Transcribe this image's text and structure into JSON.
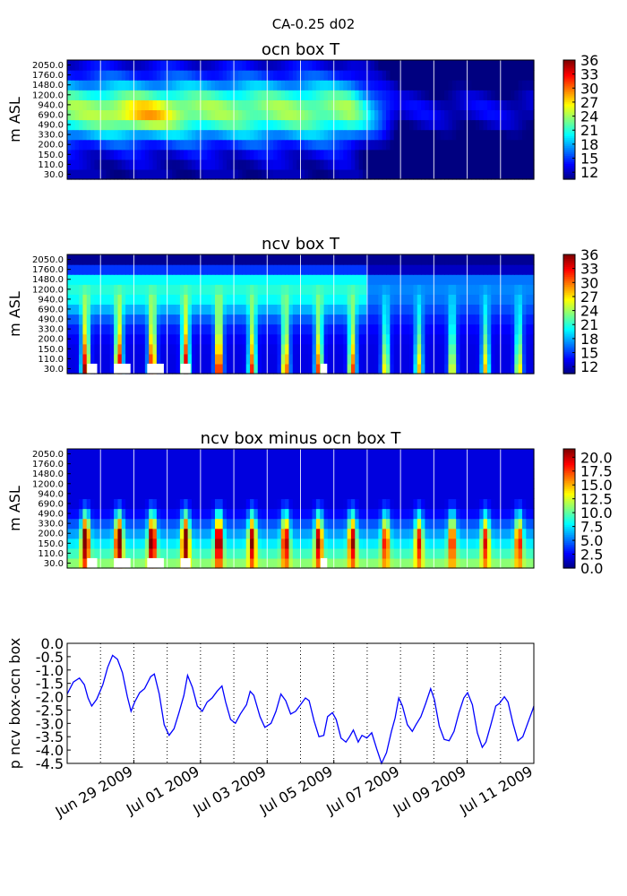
{
  "figure_title": "CA-0.25 d02",
  "chart_data": [
    {
      "type": "heatmap",
      "title": "ocn box T",
      "ylabel": "m ASL",
      "y_levels": [
        "30.0",
        "110.0",
        "150.0",
        "200.0",
        "330.0",
        "490.0",
        "690.0",
        "940.0",
        "1200.0",
        "1480.0",
        "1760.0",
        "2050.0"
      ],
      "colorbar_ticks": [
        "12",
        "15",
        "18",
        "21",
        "24",
        "27",
        "30",
        "33",
        "36"
      ],
      "colorbar_range": [
        10.5,
        36
      ],
      "colormap": "jet"
    },
    {
      "type": "heatmap",
      "title": "ncv box T",
      "ylabel": "m ASL",
      "y_levels": [
        "30.0",
        "110.0",
        "150.0",
        "200.0",
        "330.0",
        "490.0",
        "690.0",
        "940.0",
        "1200.0",
        "1480.0",
        "1760.0",
        "2050.0"
      ],
      "colorbar_ticks": [
        "12",
        "15",
        "18",
        "21",
        "24",
        "27",
        "30",
        "33",
        "36"
      ],
      "colorbar_range": [
        10.5,
        36
      ],
      "colormap": "jet"
    },
    {
      "type": "heatmap",
      "title": "ncv box minus ocn box T",
      "ylabel": "m ASL",
      "y_levels": [
        "30.0",
        "110.0",
        "150.0",
        "200.0",
        "330.0",
        "490.0",
        "690.0",
        "940.0",
        "1200.0",
        "1480.0",
        "1760.0",
        "2050.0"
      ],
      "colorbar_ticks": [
        "0.0",
        "2.5",
        "5.0",
        "7.5",
        "10.0",
        "12.5",
        "15.0",
        "17.5",
        "20.0"
      ],
      "colorbar_range": [
        0,
        21.5
      ],
      "colormap": "jet"
    },
    {
      "type": "line",
      "title": "",
      "ylabel": "p ncv box-ocn box",
      "ylim": [
        -4.5,
        0.0
      ],
      "yticks": [
        "0.0",
        "-0.5",
        "-1.0",
        "-1.5",
        "-2.0",
        "-2.5",
        "-3.0",
        "-3.5",
        "-4.0",
        "-4.5"
      ],
      "xlim_days": [
        "2009-06-27 23:00",
        "2009-07-11 23:00"
      ],
      "xtick_labels": [
        "Jun 29 2009",
        "Jul 01 2009",
        "Jul 03 2009",
        "Jul 05 2009",
        "Jul 07 2009",
        "Jul 09 2009",
        "Jul 11 2009"
      ],
      "grid": "vertical dotted daily",
      "series": [
        {
          "color": "#0000ff",
          "points": [
            [
              0.0,
              -1.9
            ],
            [
              0.25,
              -1.45
            ],
            [
              0.5,
              -1.3
            ],
            [
              0.7,
              -1.55
            ],
            [
              0.85,
              -2.05
            ],
            [
              1.0,
              -2.35
            ],
            [
              1.2,
              -2.1
            ],
            [
              1.45,
              -1.55
            ],
            [
              1.65,
              -0.9
            ],
            [
              1.85,
              -0.45
            ],
            [
              2.05,
              -0.6
            ],
            [
              2.25,
              -1.1
            ],
            [
              2.45,
              -2.0
            ],
            [
              2.6,
              -2.55
            ],
            [
              2.75,
              -2.2
            ],
            [
              2.95,
              -1.85
            ],
            [
              3.15,
              -1.7
            ],
            [
              3.4,
              -1.25
            ],
            [
              3.55,
              -1.15
            ],
            [
              3.75,
              -1.9
            ],
            [
              3.95,
              -3.05
            ],
            [
              4.15,
              -3.45
            ],
            [
              4.35,
              -3.2
            ],
            [
              4.55,
              -2.6
            ],
            [
              4.75,
              -1.95
            ],
            [
              4.9,
              -1.2
            ],
            [
              5.1,
              -1.65
            ],
            [
              5.3,
              -2.35
            ],
            [
              5.5,
              -2.55
            ],
            [
              5.7,
              -2.2
            ],
            [
              5.9,
              -2.05
            ],
            [
              6.1,
              -1.8
            ],
            [
              6.3,
              -1.6
            ],
            [
              6.45,
              -2.2
            ],
            [
              6.65,
              -2.85
            ],
            [
              6.85,
              -3.0
            ],
            [
              7.05,
              -2.65
            ],
            [
              7.3,
              -2.3
            ],
            [
              7.45,
              -1.8
            ],
            [
              7.6,
              -1.95
            ],
            [
              7.85,
              -2.75
            ],
            [
              8.05,
              -3.15
            ],
            [
              8.3,
              -3.0
            ],
            [
              8.5,
              -2.55
            ],
            [
              8.7,
              -1.9
            ],
            [
              8.9,
              -2.15
            ],
            [
              9.1,
              -2.65
            ],
            [
              9.3,
              -2.55
            ],
            [
              9.5,
              -2.3
            ],
            [
              9.7,
              -2.05
            ],
            [
              9.85,
              -2.15
            ],
            [
              10.05,
              -2.9
            ],
            [
              10.25,
              -3.5
            ],
            [
              10.45,
              -3.45
            ],
            [
              10.6,
              -2.75
            ],
            [
              10.8,
              -2.6
            ],
            [
              10.95,
              -2.85
            ],
            [
              11.15,
              -3.55
            ],
            [
              11.35,
              -3.7
            ],
            [
              11.5,
              -3.5
            ],
            [
              11.65,
              -3.25
            ],
            [
              11.85,
              -3.7
            ],
            [
              12.0,
              -3.45
            ],
            [
              12.2,
              -3.55
            ],
            [
              12.4,
              -3.35
            ],
            [
              12.6,
              -3.95
            ],
            [
              12.8,
              -4.5
            ],
            [
              13.0,
              -4.1
            ],
            [
              13.2,
              -3.3
            ],
            [
              13.35,
              -2.8
            ],
            [
              13.5,
              -2.05
            ],
            [
              13.65,
              -2.35
            ],
            [
              13.85,
              -3.05
            ],
            [
              14.05,
              -3.3
            ],
            [
              14.2,
              -3.05
            ],
            [
              14.4,
              -2.75
            ],
            [
              14.6,
              -2.25
            ],
            [
              14.8,
              -1.7
            ],
            [
              14.95,
              -2.1
            ],
            [
              15.15,
              -3.1
            ],
            [
              15.35,
              -3.6
            ],
            [
              15.55,
              -3.65
            ],
            [
              15.75,
              -3.3
            ],
            [
              15.95,
              -2.6
            ],
            [
              16.15,
              -2.05
            ],
            [
              16.3,
              -1.85
            ],
            [
              16.5,
              -2.3
            ],
            [
              16.7,
              -3.35
            ],
            [
              16.9,
              -3.9
            ],
            [
              17.05,
              -3.7
            ],
            [
              17.25,
              -3.05
            ],
            [
              17.45,
              -2.35
            ],
            [
              17.6,
              -2.25
            ],
            [
              17.8,
              -2.0
            ],
            [
              17.95,
              -2.2
            ],
            [
              18.15,
              -3.0
            ],
            [
              18.35,
              -3.65
            ],
            [
              18.55,
              -3.5
            ],
            [
              18.75,
              -3.0
            ],
            [
              18.95,
              -2.5
            ],
            [
              19.0,
              -2.35
            ]
          ]
        }
      ]
    }
  ]
}
